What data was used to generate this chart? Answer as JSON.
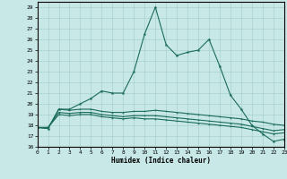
{
  "xlabel": "Humidex (Indice chaleur)",
  "xlim": [
    0,
    23
  ],
  "ylim": [
    16,
    29.5
  ],
  "yticks": [
    16,
    17,
    18,
    19,
    20,
    21,
    22,
    23,
    24,
    25,
    26,
    27,
    28,
    29
  ],
  "xticks": [
    0,
    1,
    2,
    3,
    4,
    5,
    6,
    7,
    8,
    9,
    10,
    11,
    12,
    13,
    14,
    15,
    16,
    17,
    18,
    19,
    20,
    21,
    22,
    23
  ],
  "bg_color": "#c8e8e8",
  "grid_color": "#a8d0d0",
  "line_color": "#1a6b5a",
  "series1": [
    17.8,
    17.7,
    19.5,
    19.5,
    20.0,
    20.5,
    21.2,
    21.0,
    21.0,
    23.0,
    26.5,
    29.0,
    25.5,
    24.5,
    24.8,
    25.0,
    26.0,
    23.5,
    20.8,
    19.5,
    18.0,
    17.2,
    16.5,
    16.7
  ],
  "series2": [
    17.8,
    17.7,
    19.5,
    19.4,
    19.5,
    19.5,
    19.3,
    19.2,
    19.2,
    19.3,
    19.3,
    19.4,
    19.3,
    19.2,
    19.1,
    19.0,
    18.9,
    18.8,
    18.7,
    18.6,
    18.4,
    18.3,
    18.1,
    18.0
  ],
  "series3": [
    17.8,
    17.8,
    19.2,
    19.1,
    19.2,
    19.2,
    19.0,
    18.9,
    18.8,
    18.9,
    18.9,
    18.9,
    18.8,
    18.7,
    18.6,
    18.5,
    18.4,
    18.3,
    18.2,
    18.1,
    17.9,
    17.7,
    17.5,
    17.6
  ],
  "series4": [
    17.8,
    17.8,
    19.0,
    18.9,
    19.0,
    19.0,
    18.8,
    18.7,
    18.6,
    18.7,
    18.6,
    18.6,
    18.5,
    18.4,
    18.3,
    18.2,
    18.1,
    18.0,
    17.9,
    17.8,
    17.6,
    17.4,
    17.2,
    17.3
  ]
}
